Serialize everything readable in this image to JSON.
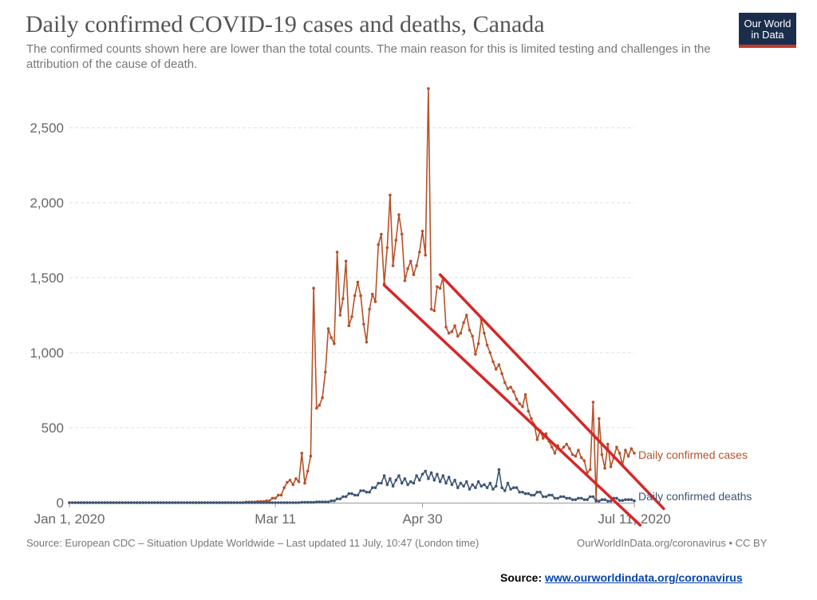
{
  "chart_data": {
    "type": "line",
    "title": "Daily confirmed COVID-19 cases and deaths, Canada",
    "subtitle": "The confirmed counts shown here are lower than the total counts. The main reason for this is limited testing and challenges in the attribution of the cause of death.",
    "x_start": "2020-01-01",
    "x_end": "2020-07-11",
    "x_ticks": [
      "Jan 1, 2020",
      "Mar 11",
      "Apr 30",
      "Jul 11, 2020"
    ],
    "ylim": [
      0,
      2800
    ],
    "y_ticks": [
      "0",
      "500",
      "1,000",
      "1,500",
      "2,000",
      "2,500"
    ],
    "y_tick_values": [
      0,
      500,
      1000,
      1500,
      2000,
      2500
    ],
    "grid": "horizontal",
    "legend": "inline-right",
    "colors": {
      "cases": "#b5522a",
      "deaths": "#3e5674",
      "annotation": "#d62728"
    },
    "series": [
      {
        "name": "Daily confirmed cases",
        "points": [
          [
            "2020-03-01",
            4
          ],
          [
            "2020-03-05",
            8
          ],
          [
            "2020-03-08",
            12
          ],
          [
            "2020-03-10",
            30
          ],
          [
            "2020-03-12",
            50
          ],
          [
            "2020-03-14",
            100
          ],
          [
            "2020-03-15",
            135
          ],
          [
            "2020-03-16",
            150
          ],
          [
            "2020-03-17",
            120
          ],
          [
            "2020-03-18",
            160
          ],
          [
            "2020-03-19",
            140
          ],
          [
            "2020-03-20",
            330
          ],
          [
            "2020-03-21",
            130
          ],
          [
            "2020-03-22",
            210
          ],
          [
            "2020-03-23",
            310
          ],
          [
            "2020-03-24",
            1430
          ],
          [
            "2020-03-25",
            630
          ],
          [
            "2020-03-26",
            650
          ],
          [
            "2020-03-27",
            700
          ],
          [
            "2020-03-28",
            870
          ],
          [
            "2020-03-29",
            1160
          ],
          [
            "2020-03-30",
            1100
          ],
          [
            "2020-03-31",
            1060
          ],
          [
            "2020-04-01",
            1670
          ],
          [
            "2020-04-02",
            1250
          ],
          [
            "2020-04-03",
            1360
          ],
          [
            "2020-04-04",
            1610
          ],
          [
            "2020-04-05",
            1180
          ],
          [
            "2020-04-06",
            1240
          ],
          [
            "2020-04-07",
            1380
          ],
          [
            "2020-04-08",
            1470
          ],
          [
            "2020-04-09",
            1380
          ],
          [
            "2020-04-10",
            1190
          ],
          [
            "2020-04-11",
            1070
          ],
          [
            "2020-04-12",
            1290
          ],
          [
            "2020-04-13",
            1390
          ],
          [
            "2020-04-14",
            1340
          ],
          [
            "2020-04-15",
            1720
          ],
          [
            "2020-04-16",
            1790
          ],
          [
            "2020-04-17",
            1460
          ],
          [
            "2020-04-18",
            1700
          ],
          [
            "2020-04-19",
            2050
          ],
          [
            "2020-04-20",
            1580
          ],
          [
            "2020-04-21",
            1750
          ],
          [
            "2020-04-22",
            1920
          ],
          [
            "2020-04-23",
            1790
          ],
          [
            "2020-04-24",
            1480
          ],
          [
            "2020-04-25",
            1560
          ],
          [
            "2020-04-26",
            1610
          ],
          [
            "2020-04-27",
            1520
          ],
          [
            "2020-04-28",
            1580
          ],
          [
            "2020-04-29",
            1670
          ],
          [
            "2020-04-30",
            1810
          ],
          [
            "2020-05-01",
            1650
          ],
          [
            "2020-05-02",
            2760
          ],
          [
            "2020-05-03",
            1290
          ],
          [
            "2020-05-04",
            1280
          ],
          [
            "2020-05-05",
            1440
          ],
          [
            "2020-05-06",
            1430
          ],
          [
            "2020-05-07",
            1500
          ],
          [
            "2020-05-08",
            1170
          ],
          [
            "2020-05-09",
            1130
          ],
          [
            "2020-05-10",
            1140
          ],
          [
            "2020-05-11",
            1180
          ],
          [
            "2020-05-12",
            1110
          ],
          [
            "2020-05-13",
            1130
          ],
          [
            "2020-05-14",
            1200
          ],
          [
            "2020-05-15",
            1250
          ],
          [
            "2020-05-16",
            1150
          ],
          [
            "2020-05-17",
            1110
          ],
          [
            "2020-05-18",
            990
          ],
          [
            "2020-05-19",
            1060
          ],
          [
            "2020-05-20",
            1220
          ],
          [
            "2020-05-21",
            1130
          ],
          [
            "2020-05-22",
            1050
          ],
          [
            "2020-05-23",
            1000
          ],
          [
            "2020-05-24",
            940
          ],
          [
            "2020-05-25",
            890
          ],
          [
            "2020-05-26",
            920
          ],
          [
            "2020-05-27",
            860
          ],
          [
            "2020-05-28",
            800
          ],
          [
            "2020-05-29",
            760
          ],
          [
            "2020-05-30",
            770
          ],
          [
            "2020-05-31",
            740
          ],
          [
            "2020-06-01",
            690
          ],
          [
            "2020-06-02",
            660
          ],
          [
            "2020-06-03",
            640
          ],
          [
            "2020-06-04",
            720
          ],
          [
            "2020-06-05",
            610
          ],
          [
            "2020-06-06",
            560
          ],
          [
            "2020-06-07",
            520
          ],
          [
            "2020-06-08",
            420
          ],
          [
            "2020-06-09",
            480
          ],
          [
            "2020-06-10",
            430
          ],
          [
            "2020-06-11",
            460
          ],
          [
            "2020-06-12",
            410
          ],
          [
            "2020-06-13",
            370
          ],
          [
            "2020-06-14",
            330
          ],
          [
            "2020-06-15",
            380
          ],
          [
            "2020-06-16",
            350
          ],
          [
            "2020-06-17",
            370
          ],
          [
            "2020-06-18",
            390
          ],
          [
            "2020-06-19",
            360
          ],
          [
            "2020-06-20",
            320
          ],
          [
            "2020-06-21",
            310
          ],
          [
            "2020-06-22",
            350
          ],
          [
            "2020-06-23",
            300
          ],
          [
            "2020-06-24",
            280
          ],
          [
            "2020-06-25",
            200
          ],
          [
            "2020-06-26",
            220
          ],
          [
            "2020-06-27",
            670
          ],
          [
            "2020-06-28",
            20
          ],
          [
            "2020-06-29",
            560
          ],
          [
            "2020-06-30",
            320
          ],
          [
            "2020-07-01",
            230
          ],
          [
            "2020-07-02",
            390
          ],
          [
            "2020-07-03",
            240
          ],
          [
            "2020-07-04",
            300
          ],
          [
            "2020-07-05",
            370
          ],
          [
            "2020-07-06",
            330
          ],
          [
            "2020-07-07",
            250
          ],
          [
            "2020-07-08",
            350
          ],
          [
            "2020-07-09",
            310
          ],
          [
            "2020-07-10",
            360
          ],
          [
            "2020-07-11",
            330
          ]
        ]
      },
      {
        "name": "Daily confirmed deaths",
        "points": [
          [
            "2020-03-10",
            0
          ],
          [
            "2020-03-20",
            2
          ],
          [
            "2020-03-25",
            5
          ],
          [
            "2020-03-30",
            12
          ],
          [
            "2020-04-01",
            25
          ],
          [
            "2020-04-03",
            40
          ],
          [
            "2020-04-05",
            60
          ],
          [
            "2020-04-07",
            50
          ],
          [
            "2020-04-09",
            80
          ],
          [
            "2020-04-11",
            70
          ],
          [
            "2020-04-13",
            100
          ],
          [
            "2020-04-15",
            130
          ],
          [
            "2020-04-17",
            180
          ],
          [
            "2020-04-18",
            120
          ],
          [
            "2020-04-19",
            160
          ],
          [
            "2020-04-20",
            110
          ],
          [
            "2020-04-21",
            150
          ],
          [
            "2020-04-22",
            180
          ],
          [
            "2020-04-23",
            130
          ],
          [
            "2020-04-24",
            160
          ],
          [
            "2020-04-25",
            120
          ],
          [
            "2020-04-26",
            140
          ],
          [
            "2020-04-27",
            130
          ],
          [
            "2020-04-28",
            180
          ],
          [
            "2020-04-29",
            150
          ],
          [
            "2020-04-30",
            190
          ],
          [
            "2020-05-01",
            210
          ],
          [
            "2020-05-02",
            160
          ],
          [
            "2020-05-03",
            200
          ],
          [
            "2020-05-04",
            150
          ],
          [
            "2020-05-05",
            190
          ],
          [
            "2020-05-06",
            140
          ],
          [
            "2020-05-07",
            180
          ],
          [
            "2020-05-08",
            130
          ],
          [
            "2020-05-09",
            170
          ],
          [
            "2020-05-10",
            120
          ],
          [
            "2020-05-11",
            150
          ],
          [
            "2020-05-12",
            100
          ],
          [
            "2020-05-13",
            130
          ],
          [
            "2020-05-14",
            110
          ],
          [
            "2020-05-15",
            140
          ],
          [
            "2020-05-16",
            90
          ],
          [
            "2020-05-17",
            120
          ],
          [
            "2020-05-18",
            100
          ],
          [
            "2020-05-19",
            140
          ],
          [
            "2020-05-20",
            110
          ],
          [
            "2020-05-21",
            120
          ],
          [
            "2020-05-22",
            100
          ],
          [
            "2020-05-23",
            130
          ],
          [
            "2020-05-24",
            90
          ],
          [
            "2020-05-25",
            110
          ],
          [
            "2020-05-26",
            220
          ],
          [
            "2020-05-27",
            100
          ],
          [
            "2020-05-28",
            80
          ],
          [
            "2020-05-29",
            130
          ],
          [
            "2020-05-30",
            90
          ],
          [
            "2020-05-31",
            100
          ],
          [
            "2020-06-02",
            70
          ],
          [
            "2020-06-04",
            60
          ],
          [
            "2020-06-06",
            50
          ],
          [
            "2020-06-08",
            70
          ],
          [
            "2020-06-10",
            40
          ],
          [
            "2020-06-12",
            50
          ],
          [
            "2020-06-14",
            30
          ],
          [
            "2020-06-16",
            40
          ],
          [
            "2020-06-18",
            30
          ],
          [
            "2020-06-20",
            20
          ],
          [
            "2020-06-22",
            30
          ],
          [
            "2020-06-24",
            20
          ],
          [
            "2020-06-26",
            40
          ],
          [
            "2020-06-28",
            10
          ],
          [
            "2020-06-30",
            20
          ],
          [
            "2020-07-02",
            10
          ],
          [
            "2020-07-04",
            30
          ],
          [
            "2020-07-06",
            15
          ],
          [
            "2020-07-08",
            20
          ],
          [
            "2020-07-11",
            12
          ]
        ]
      }
    ],
    "annotations": [
      {
        "type": "trend-channel-line",
        "from": [
          "2020-04-17",
          1450
        ],
        "to": [
          "2020-07-13",
          -150
        ]
      },
      {
        "type": "trend-channel-line",
        "from": [
          "2020-05-06",
          1520
        ],
        "to": [
          "2020-07-21",
          -40
        ]
      }
    ]
  },
  "footer": {
    "source": "Source: European CDC – Situation Update Worldwide – Last updated 11 July, 10:47 (London time)",
    "credit": "OurWorldInData.org/coronavirus • CC BY"
  },
  "logo": {
    "line1": "Our World",
    "line2": "in Data"
  },
  "source_note": {
    "label": "Source:",
    "link_text": "www.ourworldindata.org/coronavirus"
  }
}
